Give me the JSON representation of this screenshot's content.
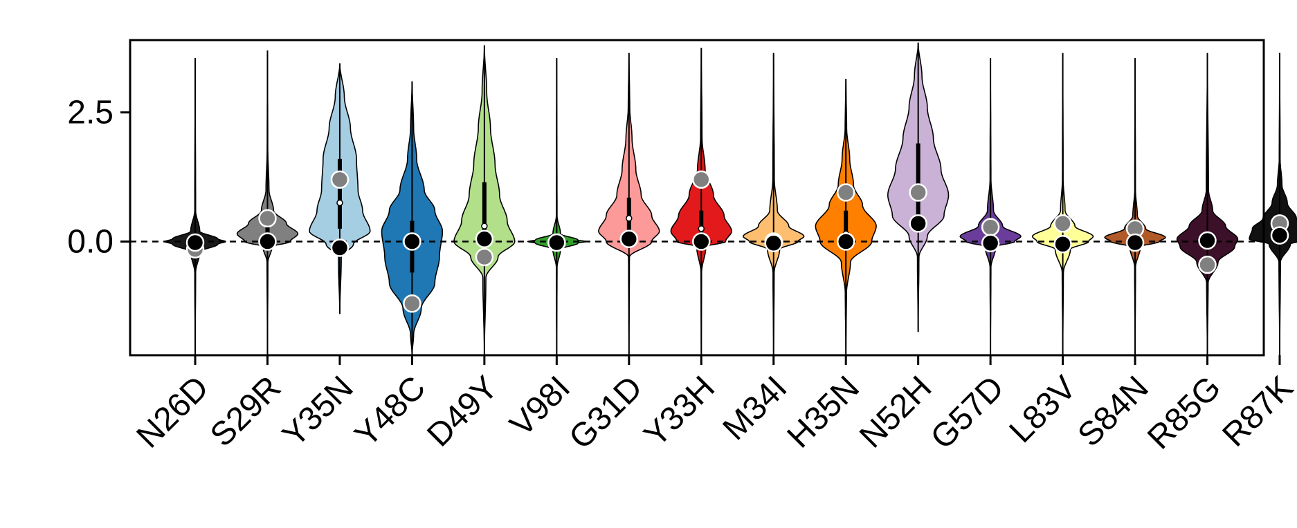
{
  "chart_data": {
    "type": "violin",
    "title": "",
    "xlabel": "",
    "ylabel": "",
    "ylim": [
      -2.2,
      3.9
    ],
    "yticks": [
      0.0,
      2.5
    ],
    "ytick_labels": [
      "0.0",
      "2.5"
    ],
    "reference_line": {
      "y": 0.0,
      "style": "dashed"
    },
    "grid": false,
    "legend": "none",
    "categories": [
      "N26D",
      "S29R",
      "Y35N",
      "Y48C",
      "D49Y",
      "V98I",
      "G31D",
      "Y33H",
      "M34I",
      "H35N",
      "N52H",
      "G57D",
      "L83V",
      "S84N",
      "R85G",
      "R87K"
    ],
    "violins": [
      {
        "label": "N26D",
        "color": "#1a1a1a",
        "min": -2.2,
        "max": 3.55,
        "q1": -0.03,
        "median": 0.0,
        "q3": 0.03,
        "black_dot": -0.02,
        "grey_dot": -0.15,
        "density": [
          [
            -2.2,
            0.0
          ],
          [
            -0.6,
            0.006
          ],
          [
            -0.2,
            0.06
          ],
          [
            -0.05,
            0.3
          ],
          [
            0.0,
            0.4
          ],
          [
            0.05,
            0.3
          ],
          [
            0.2,
            0.06
          ],
          [
            0.6,
            0.006
          ],
          [
            3.55,
            0.0
          ]
        ]
      },
      {
        "label": "S29R",
        "color": "#808080",
        "min": -2.2,
        "max": 3.7,
        "q1": 0.02,
        "median": 0.08,
        "q3": 0.3,
        "black_dot": 0.0,
        "grey_dot": 0.45,
        "density": [
          [
            -2.2,
            0.0
          ],
          [
            -0.4,
            0.006
          ],
          [
            -0.1,
            0.06
          ],
          [
            0.0,
            0.3
          ],
          [
            0.15,
            0.4
          ],
          [
            0.35,
            0.25
          ],
          [
            0.6,
            0.08
          ],
          [
            1.0,
            0.02
          ],
          [
            1.8,
            0.004
          ],
          [
            3.7,
            0.0
          ]
        ]
      },
      {
        "label": "Y35N",
        "color": "#a6cee3",
        "min": -1.4,
        "max": 3.45,
        "q1": 0.25,
        "median": 0.75,
        "q3": 1.6,
        "black_dot": -0.12,
        "grey_dot": 1.2,
        "density": [
          [
            -1.4,
            0.0
          ],
          [
            -0.3,
            0.02
          ],
          [
            -0.05,
            0.18
          ],
          [
            0.2,
            0.4
          ],
          [
            0.6,
            0.3
          ],
          [
            1.0,
            0.24
          ],
          [
            1.6,
            0.22
          ],
          [
            2.2,
            0.14
          ],
          [
            2.8,
            0.06
          ],
          [
            3.45,
            0.0
          ]
        ]
      },
      {
        "label": "Y48C",
        "color": "#1f78b4",
        "min": -2.2,
        "max": 3.1,
        "q1": -0.6,
        "median": 0.0,
        "q3": 0.4,
        "black_dot": 0.0,
        "grey_dot": -1.2,
        "density": [
          [
            -2.2,
            0.0
          ],
          [
            -1.8,
            0.02
          ],
          [
            -1.3,
            0.12
          ],
          [
            -0.8,
            0.3
          ],
          [
            -0.3,
            0.36
          ],
          [
            0.2,
            0.4
          ],
          [
            0.6,
            0.3
          ],
          [
            1.0,
            0.16
          ],
          [
            1.6,
            0.06
          ],
          [
            2.2,
            0.02
          ],
          [
            3.1,
            0.0
          ]
        ]
      },
      {
        "label": "D49Y",
        "color": "#b2df8a",
        "min": -2.2,
        "max": 3.8,
        "q1": -0.05,
        "median": 0.3,
        "q3": 1.15,
        "black_dot": 0.05,
        "grey_dot": -0.3,
        "density": [
          [
            -2.2,
            0.0
          ],
          [
            -0.7,
            0.02
          ],
          [
            -0.3,
            0.18
          ],
          [
            0.0,
            0.4
          ],
          [
            0.4,
            0.3
          ],
          [
            0.9,
            0.2
          ],
          [
            1.5,
            0.14
          ],
          [
            2.2,
            0.08
          ],
          [
            2.9,
            0.03
          ],
          [
            3.8,
            0.0
          ]
        ]
      },
      {
        "label": "V98I",
        "color": "#33a02c",
        "min": -2.2,
        "max": 3.55,
        "q1": -0.02,
        "median": 0.0,
        "q3": 0.02,
        "black_dot": -0.02,
        "grey_dot": -0.02,
        "density": [
          [
            -2.2,
            0.0
          ],
          [
            -0.5,
            0.005
          ],
          [
            -0.15,
            0.05
          ],
          [
            -0.03,
            0.28
          ],
          [
            0.0,
            0.38
          ],
          [
            0.03,
            0.28
          ],
          [
            0.15,
            0.05
          ],
          [
            0.5,
            0.005
          ],
          [
            3.55,
            0.0
          ]
        ]
      },
      {
        "label": "G31D",
        "color": "#fb9a99",
        "min": -2.2,
        "max": 3.65,
        "q1": 0.1,
        "median": 0.45,
        "q3": 0.85,
        "black_dot": 0.05,
        "grey_dot": 0.05,
        "density": [
          [
            -2.2,
            0.0
          ],
          [
            -0.3,
            0.006
          ],
          [
            0.0,
            0.3
          ],
          [
            0.2,
            0.4
          ],
          [
            0.5,
            0.3
          ],
          [
            0.9,
            0.16
          ],
          [
            1.4,
            0.09
          ],
          [
            2.0,
            0.04
          ],
          [
            2.6,
            0.01
          ],
          [
            3.65,
            0.0
          ]
        ]
      },
      {
        "label": "Y33H",
        "color": "#e31a1c",
        "min": -2.2,
        "max": 3.75,
        "q1": 0.02,
        "median": 0.25,
        "q3": 0.6,
        "black_dot": 0.0,
        "grey_dot": 1.2,
        "density": [
          [
            -2.2,
            0.0
          ],
          [
            -0.6,
            0.004
          ],
          [
            -0.1,
            0.06
          ],
          [
            0.0,
            0.32
          ],
          [
            0.2,
            0.4
          ],
          [
            0.5,
            0.3
          ],
          [
            0.9,
            0.16
          ],
          [
            1.4,
            0.05
          ],
          [
            2.0,
            0.01
          ],
          [
            3.75,
            0.0
          ]
        ]
      },
      {
        "label": "M34I",
        "color": "#fdbf6f",
        "min": -2.2,
        "max": 3.65,
        "q1": -0.03,
        "median": 0.0,
        "q3": 0.05,
        "black_dot": -0.03,
        "grey_dot": 0.0,
        "density": [
          [
            -2.2,
            0.0
          ],
          [
            -0.6,
            0.008
          ],
          [
            -0.15,
            0.08
          ],
          [
            0.0,
            0.32
          ],
          [
            0.1,
            0.4
          ],
          [
            0.3,
            0.2
          ],
          [
            0.6,
            0.05
          ],
          [
            1.2,
            0.01
          ],
          [
            3.65,
            0.0
          ]
        ]
      },
      {
        "label": "H35N",
        "color": "#ff7f00",
        "min": -2.2,
        "max": 3.15,
        "q1": 0.0,
        "median": 0.15,
        "q3": 0.6,
        "black_dot": 0.0,
        "grey_dot": 0.95,
        "density": [
          [
            -2.2,
            0.0
          ],
          [
            -1.0,
            0.008
          ],
          [
            -0.4,
            0.06
          ],
          [
            0.0,
            0.34
          ],
          [
            0.3,
            0.4
          ],
          [
            0.7,
            0.22
          ],
          [
            1.1,
            0.1
          ],
          [
            1.6,
            0.05
          ],
          [
            2.2,
            0.01
          ],
          [
            3.15,
            0.0
          ]
        ]
      },
      {
        "label": "N52H",
        "color": "#cab2d6",
        "min": -1.75,
        "max": 3.85,
        "q1": 0.25,
        "median": 1.05,
        "q3": 1.9,
        "black_dot": 0.35,
        "grey_dot": 0.95,
        "density": [
          [
            -1.75,
            0.0
          ],
          [
            -0.3,
            0.01
          ],
          [
            0.1,
            0.12
          ],
          [
            0.5,
            0.34
          ],
          [
            0.9,
            0.4
          ],
          [
            1.4,
            0.3
          ],
          [
            2.0,
            0.2
          ],
          [
            2.6,
            0.12
          ],
          [
            3.2,
            0.05
          ],
          [
            3.85,
            0.0
          ]
        ]
      },
      {
        "label": "G57D",
        "color": "#6a3d9a",
        "min": -2.2,
        "max": 3.55,
        "q1": -0.02,
        "median": 0.0,
        "q3": 0.05,
        "black_dot": -0.03,
        "grey_dot": 0.28,
        "density": [
          [
            -2.2,
            0.0
          ],
          [
            -0.5,
            0.006
          ],
          [
            -0.1,
            0.07
          ],
          [
            0.0,
            0.32
          ],
          [
            0.1,
            0.4
          ],
          [
            0.3,
            0.16
          ],
          [
            0.6,
            0.04
          ],
          [
            1.2,
            0.006
          ],
          [
            3.55,
            0.0
          ]
        ]
      },
      {
        "label": "L83V",
        "color": "#ffff99",
        "min": -2.2,
        "max": 3.65,
        "q1": -0.05,
        "median": 0.0,
        "q3": 0.05,
        "black_dot": -0.05,
        "grey_dot": 0.35,
        "density": [
          [
            -2.2,
            0.0
          ],
          [
            -0.6,
            0.008
          ],
          [
            -0.15,
            0.1
          ],
          [
            0.0,
            0.34
          ],
          [
            0.1,
            0.4
          ],
          [
            0.3,
            0.16
          ],
          [
            0.6,
            0.03
          ],
          [
            1.2,
            0.005
          ],
          [
            3.65,
            0.0
          ]
        ]
      },
      {
        "label": "S84N",
        "color": "#b15928",
        "min": -2.2,
        "max": 3.55,
        "q1": -0.02,
        "median": 0.0,
        "q3": 0.04,
        "black_dot": -0.02,
        "grey_dot": 0.25,
        "density": [
          [
            -2.2,
            0.0
          ],
          [
            -0.5,
            0.006
          ],
          [
            -0.1,
            0.07
          ],
          [
            0.0,
            0.32
          ],
          [
            0.08,
            0.4
          ],
          [
            0.25,
            0.14
          ],
          [
            0.5,
            0.03
          ],
          [
            1.0,
            0.005
          ],
          [
            3.55,
            0.0
          ]
        ]
      },
      {
        "label": "R85G",
        "color": "#3b1028",
        "min": -2.2,
        "max": 3.65,
        "q1": -0.1,
        "median": 0.02,
        "q3": 0.15,
        "black_dot": 0.02,
        "grey_dot": -0.45,
        "density": [
          [
            -2.2,
            0.0
          ],
          [
            -0.8,
            0.01
          ],
          [
            -0.4,
            0.14
          ],
          [
            -0.1,
            0.36
          ],
          [
            0.05,
            0.4
          ],
          [
            0.3,
            0.24
          ],
          [
            0.6,
            0.07
          ],
          [
            1.0,
            0.015
          ],
          [
            3.65,
            0.0
          ]
        ]
      },
      {
        "label": "R87K",
        "color": "#111111",
        "min": -2.2,
        "max": 3.65,
        "q1": 0.05,
        "median": 0.2,
        "q3": 0.35,
        "black_dot": 0.12,
        "grey_dot": 0.35,
        "density": [
          [
            -2.2,
            0.0
          ],
          [
            -0.4,
            0.01
          ],
          [
            -0.05,
            0.14
          ],
          [
            0.05,
            0.4
          ],
          [
            0.25,
            0.36
          ],
          [
            0.45,
            0.22
          ],
          [
            0.75,
            0.1
          ],
          [
            1.1,
            0.03
          ],
          [
            1.6,
            0.006
          ],
          [
            3.65,
            0.0
          ]
        ]
      }
    ]
  }
}
